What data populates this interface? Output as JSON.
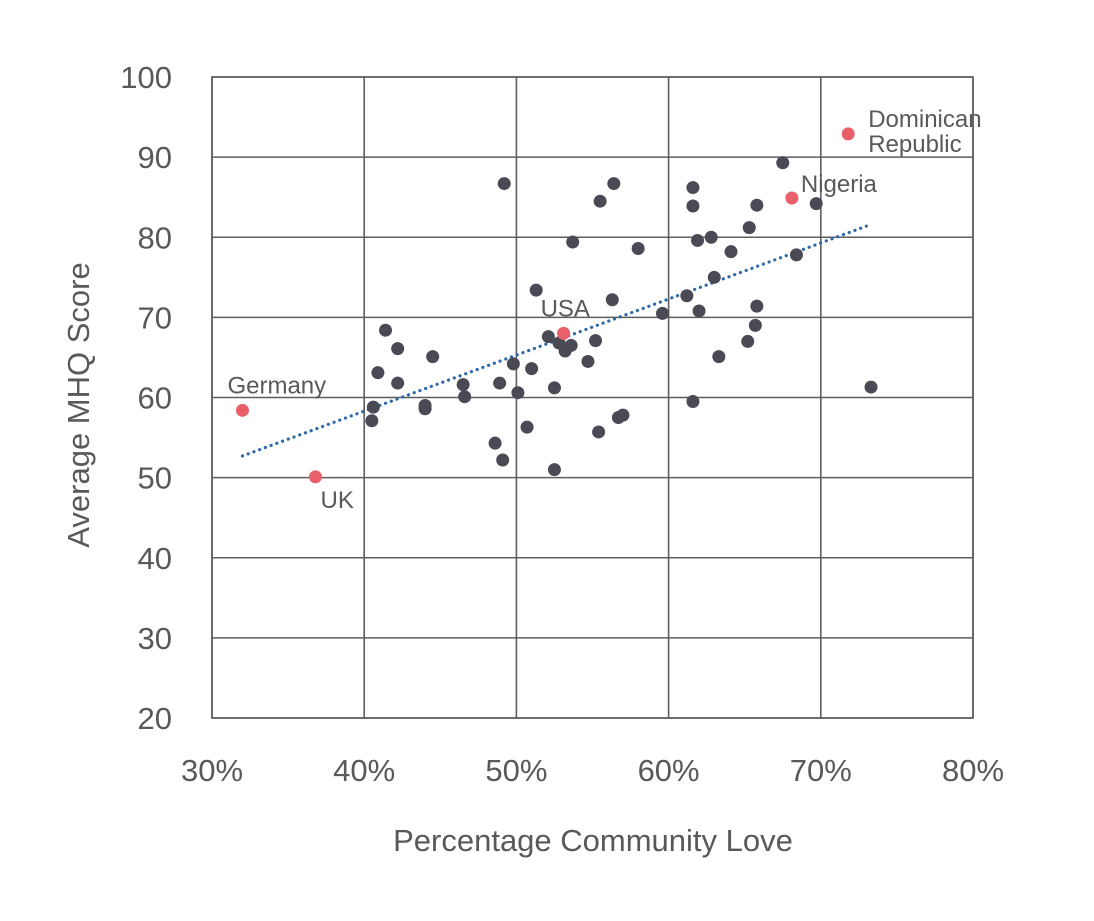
{
  "chart_data": {
    "type": "scatter",
    "xlabel": "Percentage Community Love",
    "ylabel": "Average MHQ Score",
    "xlim": [
      0.3,
      0.8
    ],
    "ylim": [
      20,
      100
    ],
    "x_ticks": [
      0.3,
      0.4,
      0.5,
      0.6,
      0.7,
      0.8
    ],
    "x_tick_labels": [
      "30%",
      "40%",
      "50%",
      "60%",
      "70%",
      "80%"
    ],
    "y_ticks": [
      20,
      30,
      40,
      50,
      60,
      70,
      80,
      90,
      100
    ],
    "y_tick_labels": [
      "20",
      "30",
      "40",
      "50",
      "60",
      "70",
      "80",
      "90",
      "100"
    ],
    "grid": true,
    "colors": {
      "points": "#4a4a55",
      "highlight": "#e8606a",
      "trendline": "#2f6aa8",
      "grid": "#5e5e5e",
      "text": "#595959"
    },
    "series": [
      {
        "values": [
          [
            0.492,
            86.7
          ],
          [
            0.564,
            86.7
          ],
          [
            0.555,
            84.5
          ],
          [
            0.616,
            86.2
          ],
          [
            0.616,
            83.9
          ],
          [
            0.675,
            89.3
          ],
          [
            0.697,
            84.2
          ],
          [
            0.658,
            84.0
          ],
          [
            0.653,
            81.2
          ],
          [
            0.537,
            79.4
          ],
          [
            0.58,
            78.6
          ],
          [
            0.619,
            79.6
          ],
          [
            0.628,
            80.0
          ],
          [
            0.641,
            78.2
          ],
          [
            0.684,
            77.8
          ],
          [
            0.63,
            75.0
          ],
          [
            0.513,
            73.4
          ],
          [
            0.563,
            72.2
          ],
          [
            0.612,
            72.7
          ],
          [
            0.62,
            70.8
          ],
          [
            0.596,
            70.5
          ],
          [
            0.658,
            71.4
          ],
          [
            0.657,
            69.0
          ],
          [
            0.652,
            67.0
          ],
          [
            0.633,
            65.1
          ],
          [
            0.414,
            68.4
          ],
          [
            0.422,
            66.1
          ],
          [
            0.409,
            63.1
          ],
          [
            0.422,
            61.8
          ],
          [
            0.445,
            65.1
          ],
          [
            0.521,
            67.6
          ],
          [
            0.528,
            66.8
          ],
          [
            0.532,
            65.8
          ],
          [
            0.536,
            66.5
          ],
          [
            0.552,
            67.1
          ],
          [
            0.547,
            64.5
          ],
          [
            0.498,
            64.2
          ],
          [
            0.51,
            63.6
          ],
          [
            0.489,
            61.8
          ],
          [
            0.465,
            61.6
          ],
          [
            0.466,
            60.1
          ],
          [
            0.501,
            60.6
          ],
          [
            0.525,
            61.2
          ],
          [
            0.406,
            58.8
          ],
          [
            0.405,
            57.1
          ],
          [
            0.44,
            59.0
          ],
          [
            0.44,
            58.6
          ],
          [
            0.507,
            56.3
          ],
          [
            0.486,
            54.3
          ],
          [
            0.491,
            52.2
          ],
          [
            0.525,
            51.0
          ],
          [
            0.554,
            55.7
          ],
          [
            0.567,
            57.5
          ],
          [
            0.57,
            57.8
          ],
          [
            0.616,
            59.5
          ],
          [
            0.733,
            61.3
          ]
        ]
      },
      {
        "highlighted": [
          {
            "label": "Dominican Republic",
            "label_lines": [
              "Dominican",
              "Republic"
            ],
            "x": 0.718,
            "y": 92.9
          },
          {
            "label": "Nigeria",
            "x": 0.681,
            "y": 84.9
          },
          {
            "label": "USA",
            "x": 0.531,
            "y": 68.0
          },
          {
            "label": "Germany",
            "x": 0.32,
            "y": 58.4
          },
          {
            "label": "UK",
            "x": 0.368,
            "y": 50.1
          }
        ]
      }
    ],
    "trendline": {
      "x": [
        0.32,
        0.733
      ],
      "y": [
        52.7,
        81.6
      ],
      "style": "dotted"
    }
  }
}
